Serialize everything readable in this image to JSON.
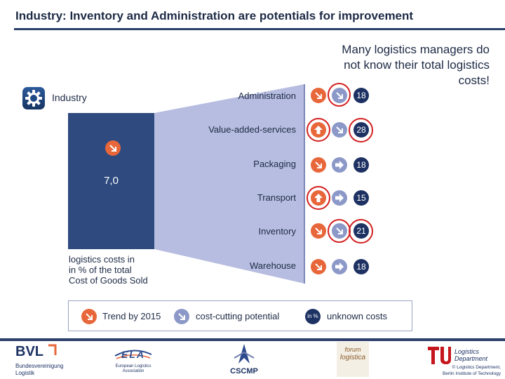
{
  "slide": {
    "title": "Industry: Inventory and Administration are potentials for improvement",
    "callout": "Many logistics managers do not know their total logistics costs!",
    "industry_label": "Industry",
    "bar_value": "7,0",
    "bar_caption": [
      "logistics costs in",
      "in % of the total",
      "Cost of Goods Sold"
    ]
  },
  "categories": [
    {
      "name": "Administration",
      "unknown": "18"
    },
    {
      "name": "Value-added-services",
      "unknown": "28"
    },
    {
      "name": "Packaging",
      "unknown": "18"
    },
    {
      "name": "Transport",
      "unknown": "15"
    },
    {
      "name": "Inventory",
      "unknown": "21"
    },
    {
      "name": "Warehouse",
      "unknown": "18"
    }
  ],
  "legend": {
    "trend": "Trend by 2015",
    "potential": "cost-cutting potential",
    "unknown_badge": "in %",
    "unknown": "unknown costs"
  },
  "footer": {
    "bvl_abbr": "BVL",
    "bvl_name": "Bundesvereinigung",
    "bvl_sub": "Logistik",
    "ela_abbr": "ELA",
    "ela_name": "European Logistics",
    "ela_sub": "Association",
    "cscmp": "CSCMP",
    "forum_1": "forum",
    "forum_2": "logistica",
    "tu_1": "Logistics",
    "tu_2": "Department",
    "tu_3": "© Logistics Department,",
    "tu_4": "Berlin Institute of Technology"
  },
  "colors": {
    "trend": "#e8673a",
    "potential": "#8c99c8",
    "unknown": "#1d3263",
    "highlight": "#d42020",
    "bar": "#2e4a7f"
  }
}
